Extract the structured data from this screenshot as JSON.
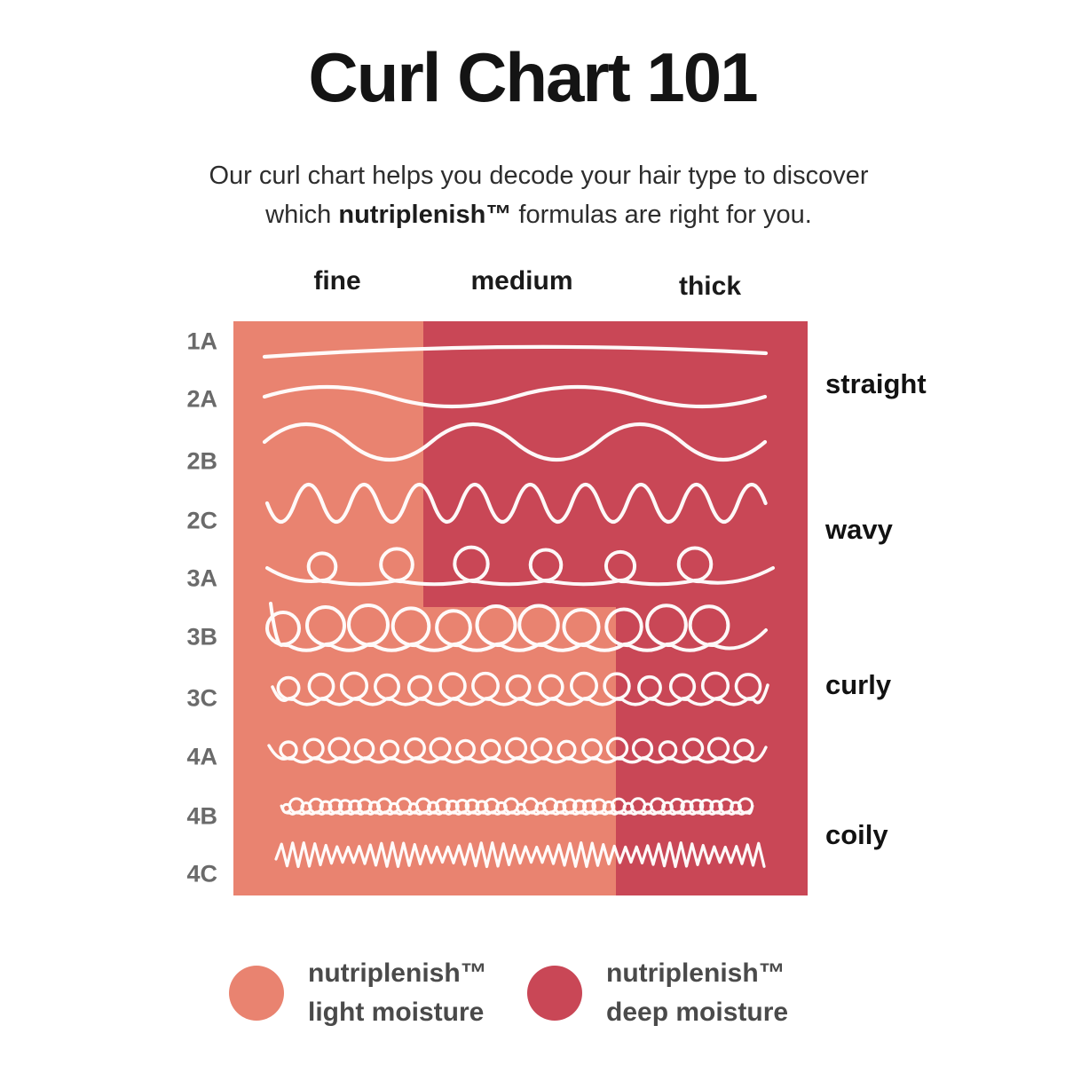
{
  "title": "Curl Chart 101",
  "subtitle": {
    "line1": "Our curl chart helps you decode your hair type to discover",
    "line2_pre": "which ",
    "line2_bold": "nutriplenish™",
    "line2_post": " formulas are right for you."
  },
  "columns": [
    "fine",
    "medium",
    "thick"
  ],
  "rows": [
    "1A",
    "2A",
    "2B",
    "2C",
    "3A",
    "3B",
    "3C",
    "4A",
    "4B",
    "4C"
  ],
  "curl_groups": [
    "straight",
    "wavy",
    "curly",
    "coily"
  ],
  "legend": {
    "items": [
      {
        "name": "nutriplenish™",
        "desc": "light moisture",
        "color_key": "light"
      },
      {
        "name": "nutriplenish™",
        "desc": "deep moisture",
        "color_key": "deep"
      }
    ]
  },
  "colors": {
    "light": "#E98370",
    "deep": "#C94756",
    "curl_stroke": "#FFFFFF",
    "row_label": "#6A6A6A",
    "heading": "#1A1A1A",
    "legend_text": "#4A4A4A"
  },
  "chart_data": {
    "type": "heatmap",
    "title": "Curl Chart 101",
    "x_categories": [
      "fine",
      "medium",
      "thick"
    ],
    "y_categories": [
      "1A",
      "2A",
      "2B",
      "2C",
      "3A",
      "3B",
      "3C",
      "4A",
      "4B",
      "4C"
    ],
    "row_groups": [
      {
        "label": "straight",
        "rows": [
          "1A",
          "2A"
        ]
      },
      {
        "label": "wavy",
        "rows": [
          "2B",
          "2C",
          "3A"
        ]
      },
      {
        "label": "curly",
        "rows": [
          "3B",
          "3C",
          "4A"
        ]
      },
      {
        "label": "coily",
        "rows": [
          "4B",
          "4C"
        ]
      }
    ],
    "cells": {
      "1A": [
        "light",
        "deep",
        "deep"
      ],
      "2A": [
        "light",
        "deep",
        "deep"
      ],
      "2B": [
        "light",
        "deep",
        "deep"
      ],
      "2C": [
        "light",
        "deep",
        "deep"
      ],
      "3A": [
        "light",
        "deep",
        "deep"
      ],
      "3B": [
        "light",
        "light",
        "deep"
      ],
      "3C": [
        "light",
        "light",
        "deep"
      ],
      "4A": [
        "light",
        "light",
        "deep"
      ],
      "4B": [
        "light",
        "light",
        "deep"
      ],
      "4C": [
        "light",
        "light",
        "deep"
      ]
    },
    "legend": [
      {
        "value": "light",
        "label": "nutriplenish™ light moisture",
        "color": "#E98370"
      },
      {
        "value": "deep",
        "label": "nutriplenish™ deep moisture",
        "color": "#C94756"
      }
    ],
    "grid": false,
    "legend_position": "bottom"
  }
}
